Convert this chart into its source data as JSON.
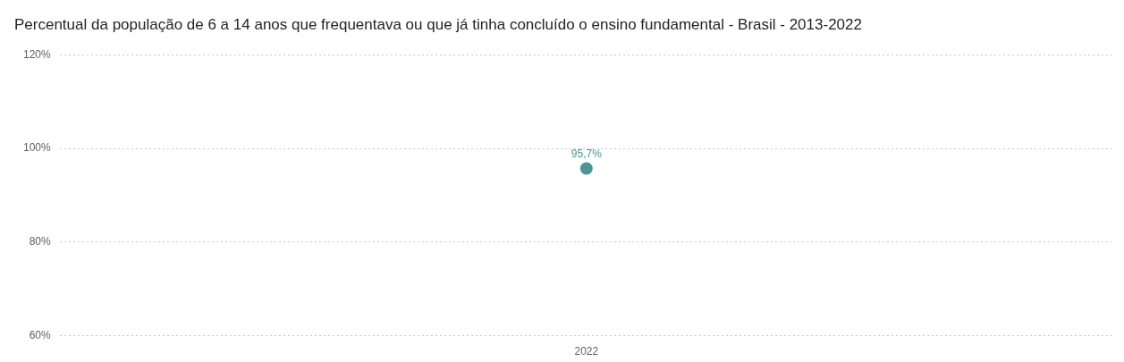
{
  "chart_data": {
    "type": "line",
    "title": "Percentual da população de 6 a 14 anos que frequentava ou que já tinha concluído o ensino fundamental - Brasil - 2013-2022",
    "categories": [
      "2022"
    ],
    "series": [
      {
        "color": "#4a9596",
        "values": [
          95.7
        ],
        "value_labels": [
          "95,7%"
        ]
      }
    ],
    "ylim": [
      60,
      120
    ],
    "yticks": [
      {
        "value": 60,
        "label": "60%"
      },
      {
        "value": 80,
        "label": "80%"
      },
      {
        "value": 100,
        "label": "100%"
      },
      {
        "value": 120,
        "label": "120%"
      }
    ],
    "grid": "y",
    "marker": "circle",
    "legend": false
  }
}
